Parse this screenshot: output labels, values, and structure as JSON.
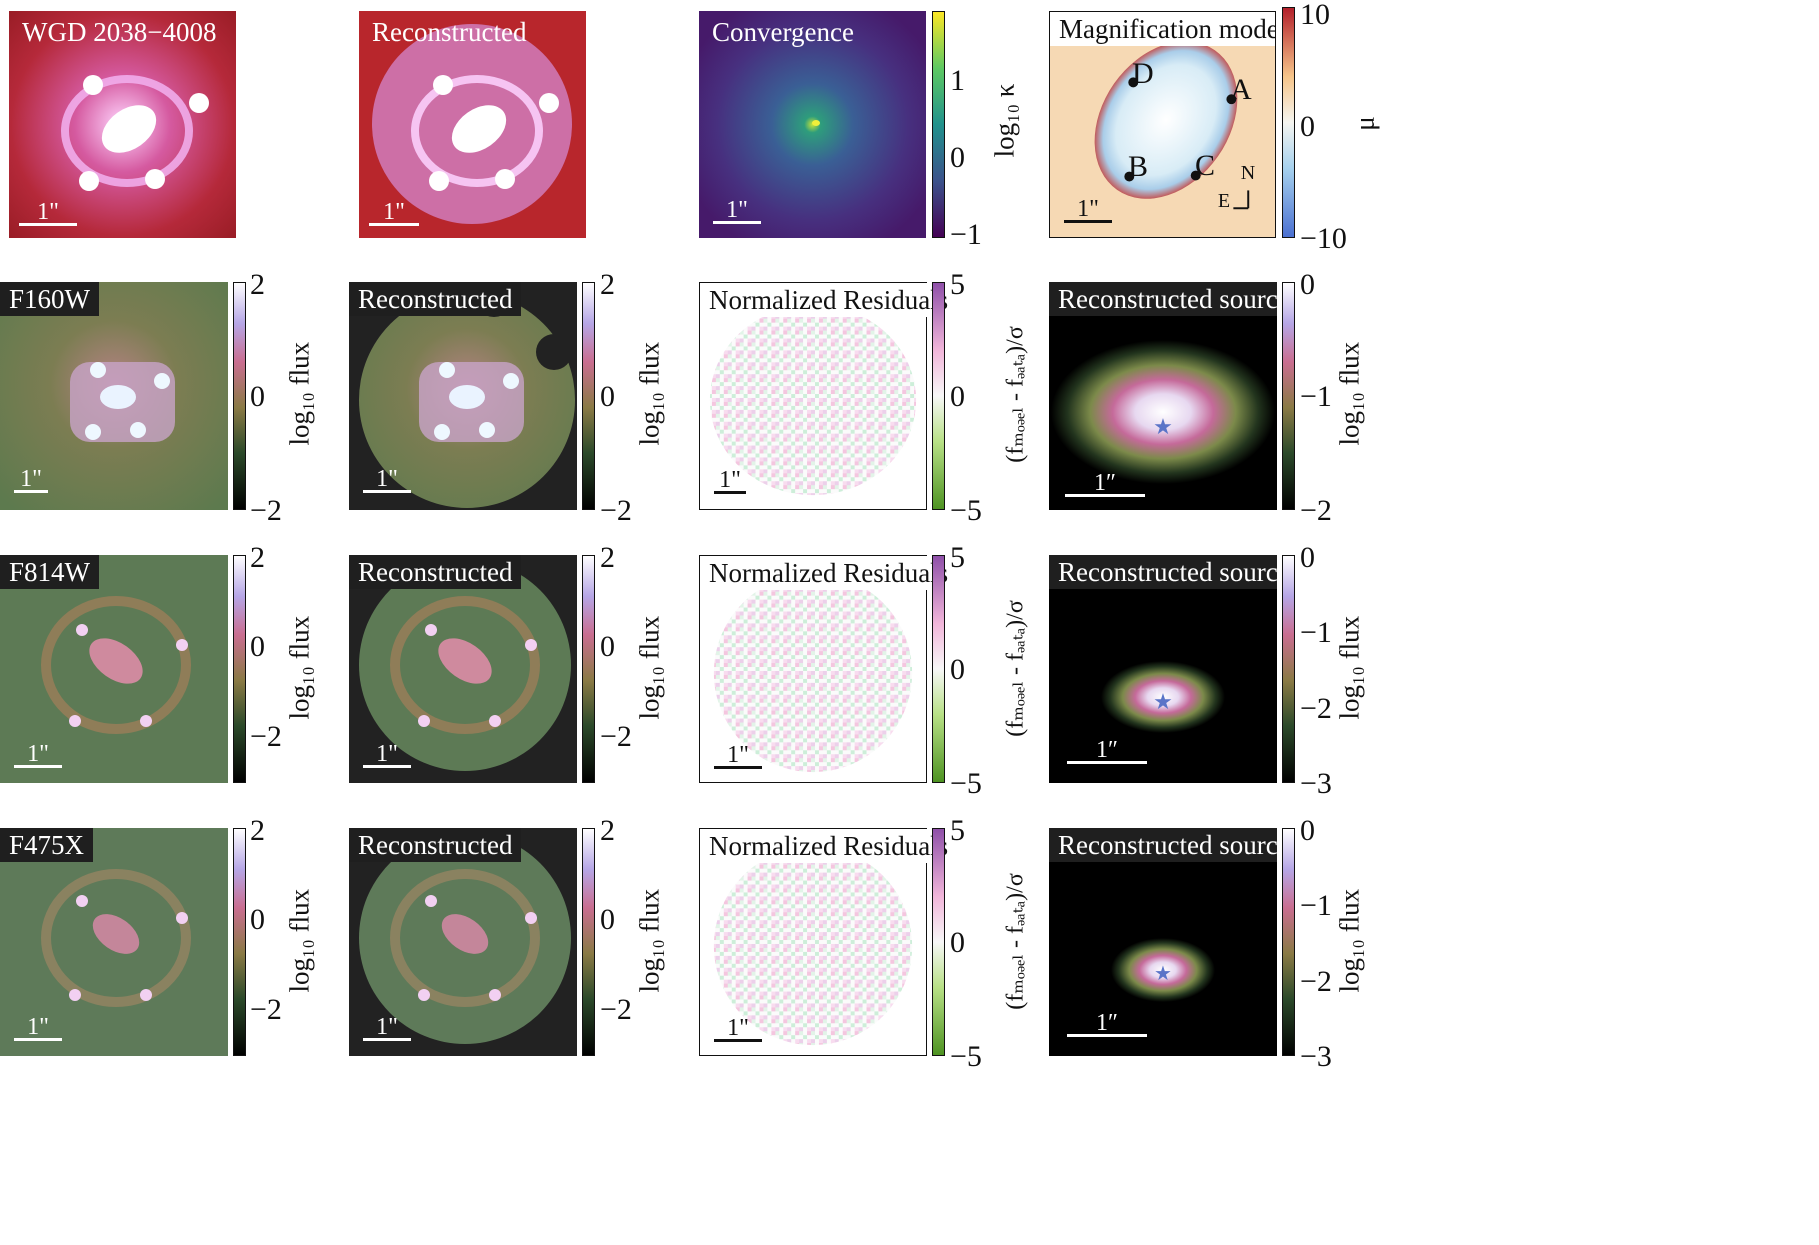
{
  "row1": {
    "a_title": "WGD 2038−4008",
    "b_title": "Reconstructed",
    "c_title": "Convergence",
    "d_title": "Magnification model",
    "scale": "1\"",
    "conv_ticks": [
      "1",
      "0",
      "−1"
    ],
    "conv_label": "log₁₀ κ",
    "mag_ticks": [
      "10",
      "0",
      "−10"
    ],
    "mag_label": "μ",
    "images": [
      "A",
      "B",
      "C",
      "D"
    ],
    "compass_n": "N",
    "compass_e": "E"
  },
  "bands": [
    {
      "name": "F160W",
      "flux_ticks": [
        "2",
        "0",
        "−2"
      ],
      "src_ticks": [
        "0",
        "−1",
        "−2"
      ]
    },
    {
      "name": "F814W",
      "flux_ticks": [
        "2",
        "0",
        "−2"
      ],
      "src_ticks": [
        "0",
        "−1",
        "−2",
        "−3"
      ]
    },
    {
      "name": "F475X",
      "flux_ticks": [
        "2",
        "0",
        "−2"
      ],
      "src_ticks": [
        "0",
        "−1",
        "−2",
        "−3"
      ]
    }
  ],
  "common": {
    "reconstructed": "Reconstructed",
    "residuals": "Normalized Residuals",
    "source": "Reconstructed source",
    "flux_label": "log₁₀ flux",
    "resid_label": "(fₘₒₔₑₗ - fₔₐₜₐ)/σ",
    "resid_ticks": [
      "5",
      "0",
      "−5"
    ],
    "scale": "1\"",
    "scale_src": "1″"
  }
}
